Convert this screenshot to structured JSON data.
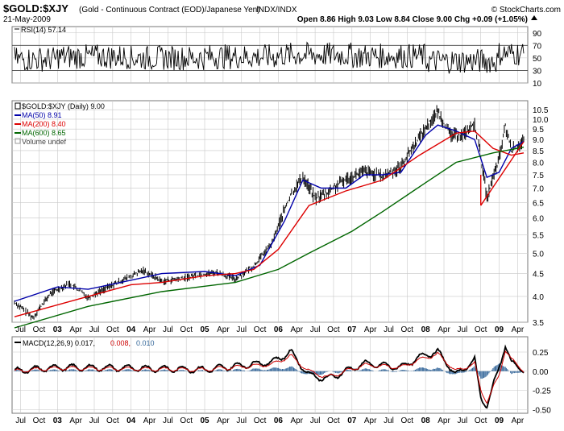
{
  "header": {
    "symbol": "$GOLD:$XJY",
    "description": "(Gold - Continuous Contract (EOD)/Japanese Yen)",
    "exchange": "INDX/INDX",
    "date": "21-May-2009",
    "copyright": "© StockCharts.com",
    "quote": "Open 8.86  High 9.03  Low 8.84  Close 9.00  Chg +0.09 (+1.05%)",
    "quote_arrow_icon": "up-triangle-icon"
  },
  "colors": {
    "price": "#000000",
    "ma50": "#0000aa",
    "ma200": "#dd0000",
    "ma600": "#006600",
    "macd_line": "#000000",
    "macd_signal": "#cc0000",
    "macd_hist": "#336699",
    "grid": "#c8c8c8",
    "trendline": "#dd0000"
  },
  "chart_data": [
    {
      "type": "line",
      "panel": "rsi",
      "legend": "RSI(14) 57.14",
      "ylim": [
        10,
        100
      ],
      "yticks": [
        10,
        30,
        50,
        70,
        90
      ],
      "reference_lines": [
        30,
        70
      ],
      "series": [
        {
          "name": "RSI(14)",
          "last_value": 57.14,
          "typical_range": [
            30,
            70
          ],
          "values_by_year": {
            "2002": 48,
            "2003": 52,
            "2004": 50,
            "2005": 52,
            "2006": 55,
            "2007": 53,
            "2008": 45,
            "2009": 57
          }
        }
      ]
    },
    {
      "type": "line",
      "panel": "price",
      "scale": "log",
      "ylim": [
        3.5,
        11
      ],
      "yticks": [
        "3.5",
        "4.0",
        "4.5",
        "5.0",
        "5.5",
        "6.0",
        "6.5",
        "7.0",
        "7.5",
        "8.0",
        "8.5",
        "9.0",
        "9.5",
        "10.0",
        "10.5"
      ],
      "x_tick_labels": [
        "Jul",
        "Oct",
        "03",
        "Apr",
        "Jul",
        "Oct",
        "04",
        "Apr",
        "Jul",
        "Oct",
        "05",
        "Apr",
        "Jul",
        "Oct",
        "06",
        "Apr",
        "Jul",
        "Oct",
        "07",
        "Apr",
        "Jul",
        "Oct",
        "08",
        "Apr",
        "Jul",
        "Oct",
        "09",
        "Apr"
      ],
      "legend": [
        {
          "key": "price",
          "label": "$GOLD:$XJY (Daily) 9.00"
        },
        {
          "key": "ma50",
          "label": "MA(50) 8.91"
        },
        {
          "key": "ma200",
          "label": "MA(200) 8.40"
        },
        {
          "key": "ma600",
          "label": "MA(600) 8.65"
        },
        {
          "key": "volume",
          "label": "Volume undef"
        }
      ],
      "series": [
        {
          "name": "$GOLD:$XJY",
          "x": [
            "2002-06",
            "2002-09",
            "2002-12",
            "2003-03",
            "2003-06",
            "2003-09",
            "2003-12",
            "2004-03",
            "2004-06",
            "2004-09",
            "2004-12",
            "2005-03",
            "2005-06",
            "2005-09",
            "2005-12",
            "2006-03",
            "2006-05",
            "2006-07",
            "2006-09",
            "2006-12",
            "2007-03",
            "2007-06",
            "2007-09",
            "2007-12",
            "2008-03",
            "2008-05",
            "2008-07",
            "2008-09",
            "2008-10",
            "2008-11",
            "2009-01",
            "2009-02",
            "2009-03",
            "2009-05"
          ],
          "y": [
            3.9,
            3.6,
            4.1,
            4.3,
            4.0,
            4.2,
            4.4,
            4.6,
            4.35,
            4.4,
            4.5,
            4.55,
            4.4,
            4.7,
            5.3,
            6.8,
            7.5,
            6.7,
            6.9,
            7.4,
            7.7,
            7.5,
            7.9,
            9.2,
            10.5,
            9.3,
            9.3,
            9.8,
            8.3,
            6.7,
            8.2,
            9.7,
            8.6,
            9.0
          ]
        },
        {
          "name": "MA(50)",
          "x": [
            "2002-06",
            "2003-01",
            "2003-06",
            "2004-01",
            "2004-06",
            "2005-01",
            "2005-06",
            "2005-10",
            "2006-02",
            "2006-05",
            "2006-08",
            "2006-12",
            "2007-03",
            "2007-06",
            "2007-09",
            "2008-01",
            "2008-03",
            "2008-06",
            "2008-09",
            "2008-11",
            "2009-01",
            "2009-03",
            "2009-05"
          ],
          "y": [
            3.9,
            4.2,
            4.15,
            4.35,
            4.5,
            4.55,
            4.45,
            4.7,
            5.9,
            7.3,
            7.0,
            7.0,
            7.5,
            7.5,
            7.6,
            9.2,
            9.7,
            9.4,
            9.0,
            7.4,
            7.6,
            8.6,
            8.91
          ]
        },
        {
          "name": "MA(200)",
          "x": [
            "2002-06",
            "2003-06",
            "2004-01",
            "2004-06",
            "2005-01",
            "2005-06",
            "2005-09",
            "2006-01",
            "2006-06",
            "2006-12",
            "2007-06",
            "2007-12",
            "2008-06",
            "2008-09",
            "2008-12",
            "2009-03",
            "2009-05"
          ],
          "y": [
            3.6,
            4.0,
            4.25,
            4.3,
            4.45,
            4.5,
            4.6,
            5.1,
            6.4,
            6.9,
            7.3,
            8.3,
            9.3,
            9.4,
            8.6,
            8.3,
            8.4
          ]
        },
        {
          "name": "MA(600)",
          "x": [
            "2002-06",
            "2003-06",
            "2004-06",
            "2005-06",
            "2006-01",
            "2006-06",
            "2007-01",
            "2007-06",
            "2008-01",
            "2008-06",
            "2008-12",
            "2009-05"
          ],
          "y": [
            3.4,
            3.8,
            4.1,
            4.3,
            4.6,
            5.0,
            5.6,
            6.2,
            7.2,
            8.0,
            8.4,
            8.65
          ]
        }
      ],
      "annotations": [
        {
          "type": "trendline",
          "from": {
            "x": "2008-10",
            "y": 6.4
          },
          "to": {
            "x": "2009-05",
            "y": 8.9
          }
        },
        {
          "type": "trendline",
          "from": {
            "x": "2008-10",
            "y": 6.4
          },
          "to": {
            "x": "2008-10",
            "y": 7.5
          }
        }
      ]
    },
    {
      "type": "line",
      "panel": "macd",
      "legend": [
        {
          "key": "macd_line",
          "label": "MACD(12,26,9) 0.017,"
        },
        {
          "key": "macd_signal",
          "label": "0.008,"
        },
        {
          "key": "macd_hist",
          "label": "0.010"
        }
      ],
      "ylim": [
        -0.55,
        0.45
      ],
      "yticks": [
        "0.25",
        "0.00",
        "-0.25",
        "-0.50"
      ],
      "x_tick_labels": [
        "Jul",
        "Oct",
        "03",
        "Apr",
        "Jul",
        "Oct",
        "04",
        "Apr",
        "Jul",
        "Oct",
        "05",
        "Apr",
        "Jul",
        "Oct",
        "06",
        "Apr",
        "Jul",
        "Oct",
        "07",
        "Apr",
        "Jul",
        "Oct",
        "08",
        "Apr",
        "Jul",
        "Oct",
        "09",
        "Apr"
      ],
      "series": [
        {
          "name": "MACD",
          "x": [
            "2002-06",
            "2003-01",
            "2004-01",
            "2005-01",
            "2005-12",
            "2006-03",
            "2006-06",
            "2006-09",
            "2007-03",
            "2007-09",
            "2008-01",
            "2008-03",
            "2008-06",
            "2008-09",
            "2008-10",
            "2008-11",
            "2009-01",
            "2009-02",
            "2009-03",
            "2009-05"
          ],
          "y": [
            0.0,
            0.05,
            0.04,
            0.02,
            0.12,
            0.25,
            -0.05,
            -0.1,
            0.1,
            0.05,
            0.22,
            0.25,
            -0.05,
            0.15,
            -0.35,
            -0.45,
            0.05,
            0.35,
            0.1,
            0.017
          ]
        },
        {
          "name": "Signal",
          "x": [
            "2002-06",
            "2003-01",
            "2004-01",
            "2005-01",
            "2005-12",
            "2006-03",
            "2006-06",
            "2006-09",
            "2007-03",
            "2007-09",
            "2008-01",
            "2008-03",
            "2008-06",
            "2008-09",
            "2008-10",
            "2008-11",
            "2009-01",
            "2009-02",
            "2009-03",
            "2009-05"
          ],
          "y": [
            0.0,
            0.04,
            0.03,
            0.02,
            0.09,
            0.2,
            0.0,
            -0.08,
            0.08,
            0.05,
            0.18,
            0.22,
            0.0,
            0.1,
            -0.25,
            -0.4,
            -0.05,
            0.28,
            0.15,
            0.008
          ]
        }
      ]
    }
  ]
}
